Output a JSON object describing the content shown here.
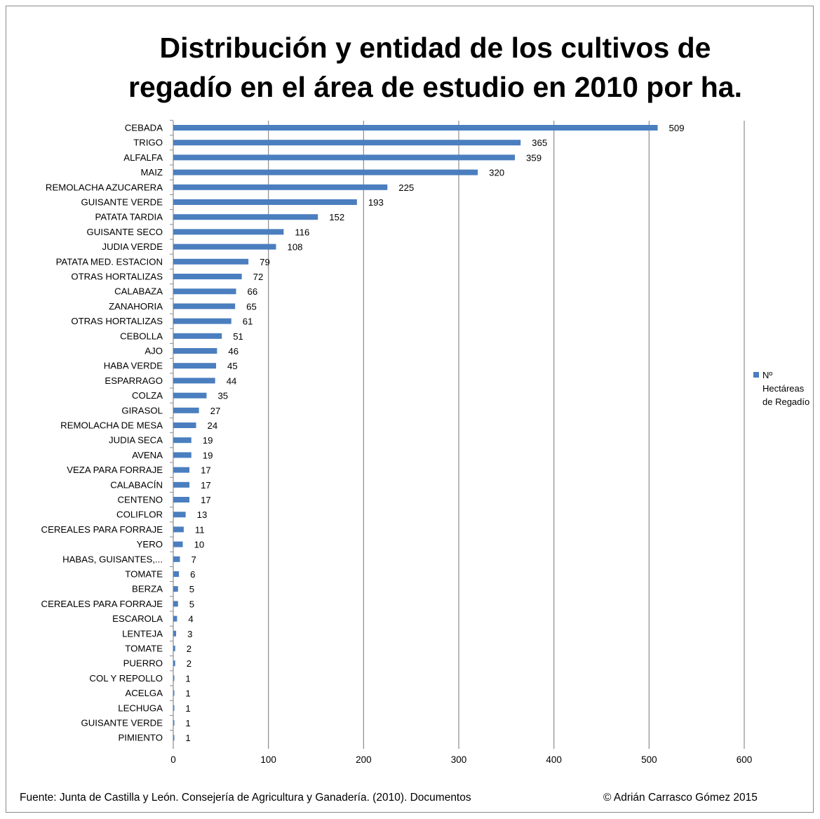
{
  "chart_data": {
    "type": "bar",
    "orientation": "horizontal",
    "title_lines": [
      "Distribución y entidad de los cultivos de",
      "regadío en el área de estudio en 2010 por ha."
    ],
    "categories": [
      "CEBADA",
      "TRIGO",
      "ALFALFA",
      "MAIZ",
      "REMOLACHA AZUCARERA",
      "GUISANTE VERDE",
      "PATATA TARDIA",
      "GUISANTE SECO",
      "JUDIA VERDE",
      "PATATA MED. ESTACION",
      "OTRAS HORTALIZAS",
      "CALABAZA",
      "ZANAHORIA",
      "OTRAS HORTALIZAS",
      "CEBOLLA",
      "AJO",
      "HABA VERDE",
      "ESPARRAGO",
      "COLZA",
      "GIRASOL",
      "REMOLACHA DE MESA",
      "JUDIA SECA",
      "AVENA",
      "VEZA PARA FORRAJE",
      "CALABACÍN",
      "CENTENO",
      "COLIFLOR",
      "CEREALES PARA FORRAJE",
      "YERO",
      "HABAS, GUISANTES,...",
      "TOMATE",
      "BERZA",
      "CEREALES PARA FORRAJE",
      "ESCAROLA",
      "LENTEJA",
      "TOMATE",
      "PUERRO",
      "COL Y REPOLLO",
      "ACELGA",
      "LECHUGA",
      "GUISANTE VERDE",
      "PIMIENTO"
    ],
    "series": [
      {
        "name": "Nº Hectáreas de Regadío",
        "color": "#4a7ebf",
        "values": [
          509,
          365,
          359,
          320,
          225,
          193,
          152,
          116,
          108,
          79,
          72,
          66,
          65,
          61,
          51,
          46,
          45,
          44,
          35,
          27,
          24,
          19,
          19,
          17,
          17,
          17,
          13,
          11,
          10,
          7,
          6,
          5,
          5,
          4,
          3,
          2,
          2,
          1,
          1,
          1,
          1,
          1
        ]
      }
    ],
    "xlim": [
      0,
      600
    ],
    "xticks": [
      0,
      100,
      200,
      300,
      400,
      500,
      600
    ],
    "grid": true,
    "legend_position": "right",
    "legend_lines": [
      "Nº",
      "Hectáreas",
      "de Regadío"
    ]
  },
  "footer": {
    "source": "Fuente: Junta de Castilla y León. Consejería de Agricultura y Ganadería. (2010). Documentos",
    "copyright": "© Adrián Carrasco Gómez 2015"
  },
  "colors": {
    "bar": "#4a7ebf",
    "grid": "#8c8c8c",
    "text": "#000000"
  }
}
